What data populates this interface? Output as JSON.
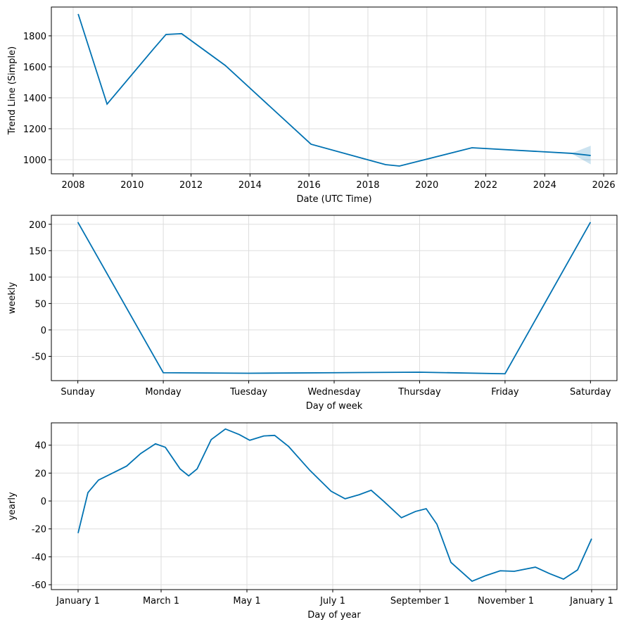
{
  "chart_data": [
    {
      "type": "line",
      "xlabel": "Date (UTC Time)",
      "ylabel": "Trend Line (Simple)",
      "x": [
        2008.17,
        2009.15,
        2010.72,
        2011.15,
        2011.68,
        2013.16,
        2016.07,
        2018.6,
        2019.07,
        2021.53,
        2024.9,
        2025.56
      ],
      "series": [
        {
          "color": "#0072B2",
          "values": [
            1941,
            1359,
            1714,
            1809,
            1814,
            1609,
            1100,
            968,
            959,
            1077,
            1041,
            1027
          ]
        }
      ],
      "band": {
        "color": "#0072B2",
        "x": [
          2024.9,
          2025.56
        ],
        "lower": [
          1041,
          970
        ],
        "upper": [
          1041,
          1090
        ]
      },
      "xlim": [
        2007.26,
        2026.45
      ],
      "xticks": [
        2008,
        2010,
        2012,
        2014,
        2016,
        2018,
        2020,
        2022,
        2024,
        2026
      ],
      "ylim": [
        909,
        1986
      ],
      "yticks": [
        1000,
        1200,
        1400,
        1600,
        1800
      ],
      "grid": true
    },
    {
      "type": "line",
      "xlabel": "Day of week",
      "ylabel": "weekly",
      "categories": [
        "Sunday",
        "Monday",
        "Tuesday",
        "Wednesday",
        "Thursday",
        "Friday",
        "Saturday"
      ],
      "series": [
        {
          "color": "#0072B2",
          "values": [
            204,
            -81,
            -82,
            -81,
            -80,
            -83,
            204
          ]
        }
      ],
      "ylim": [
        -96,
        217
      ],
      "yticks": [
        -50,
        0,
        50,
        100,
        150,
        200
      ],
      "grid": true
    },
    {
      "type": "line",
      "xlabel": "Day of year",
      "ylabel": "yearly",
      "x": [
        0,
        7,
        14.5,
        24.5,
        34.5,
        44.5,
        55,
        62,
        72.5,
        78.6,
        84.6,
        94.6,
        104.7,
        114.6,
        122,
        132,
        139.7,
        149.7,
        164.7,
        179.8,
        189.8,
        199.8,
        208.3,
        217,
        229.8,
        239.8,
        247.4,
        255,
        265,
        280,
        290,
        300,
        310,
        325,
        335,
        345,
        355,
        365
      ],
      "series": [
        {
          "color": "#0072B2",
          "values": [
            -23,
            6,
            15,
            20,
            25,
            34,
            41,
            38.5,
            23,
            18,
            23,
            44,
            51.6,
            47.6,
            43.5,
            46.6,
            47,
            39,
            22,
            7,
            1.6,
            4.5,
            7.7,
            0,
            -12,
            -7.5,
            -5.5,
            -16.6,
            -44,
            -57.5,
            -53.4,
            -50,
            -50.4,
            -47.4,
            -52,
            -56,
            -49.4,
            -27
          ]
        }
      ],
      "xlim": [
        -19,
        383
      ],
      "xticks": [
        {
          "value": 0,
          "label": "January 1"
        },
        {
          "value": 59,
          "label": "March 1"
        },
        {
          "value": 120,
          "label": "May 1"
        },
        {
          "value": 181,
          "label": "July 1"
        },
        {
          "value": 243,
          "label": "September 1"
        },
        {
          "value": 304,
          "label": "November 1"
        },
        {
          "value": 365,
          "label": "January 1"
        }
      ],
      "ylim": [
        -63.5,
        56
      ],
      "yticks": [
        -60,
        -40,
        -20,
        0,
        20,
        40
      ],
      "grid": true
    }
  ]
}
